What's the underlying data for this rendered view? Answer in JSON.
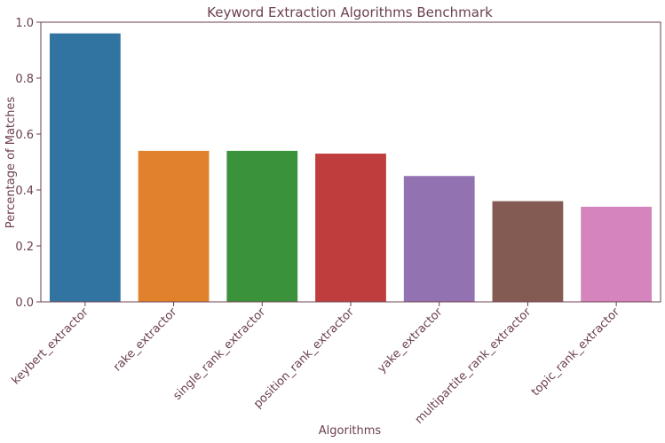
{
  "chart_data": {
    "type": "bar",
    "title": "Keyword Extraction Algorithms Benchmark",
    "xlabel": "Algorithms",
    "ylabel": "Percentage of Matches",
    "categories": [
      "keybert_extractor",
      "rake_extractor",
      "single_rank_extractor",
      "position_rank_extractor",
      "yake_extractor",
      "multipartite_rank_extractor",
      "topic_rank_extractor"
    ],
    "values": [
      0.96,
      0.54,
      0.54,
      0.53,
      0.45,
      0.36,
      0.34
    ],
    "colors": [
      "#3274a1",
      "#e1812c",
      "#3a923a",
      "#c03d3e",
      "#9372b2",
      "#845b53",
      "#d684bd"
    ],
    "ylim": [
      0,
      1.0
    ],
    "yticks": [
      0.0,
      0.2,
      0.4,
      0.6,
      0.8,
      1.0
    ],
    "grid": false,
    "text_color": "#6b3f4e"
  }
}
